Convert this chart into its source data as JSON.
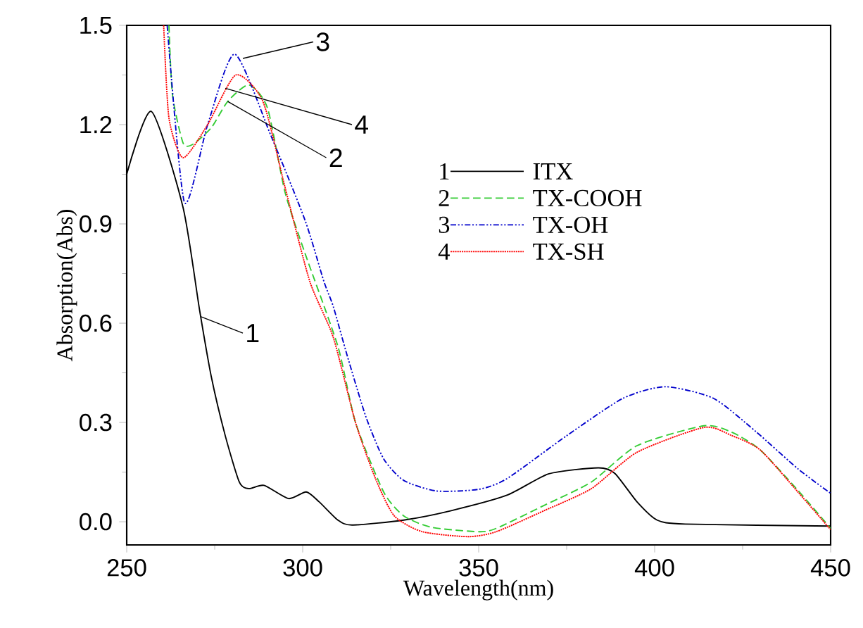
{
  "chart_data": {
    "type": "line",
    "xlabel": "Wavelength(nm)",
    "ylabel": "Absorption(Abs)",
    "xlim": [
      250,
      450
    ],
    "ylim": [
      -0.07,
      1.5
    ],
    "xticks": [
      250,
      300,
      350,
      400,
      450
    ],
    "yticks": [
      {
        "value": 0,
        "label": "0.0"
      },
      {
        "value": 0.3,
        "label": "0.3"
      },
      {
        "value": 0.6,
        "label": "0.6"
      },
      {
        "value": 0.9,
        "label": "0.9"
      },
      {
        "value": 1.2,
        "label": "1.2"
      },
      {
        "value": 1.5,
        "label": "1.5"
      }
    ],
    "grid": false,
    "legend": "right",
    "marker": "none",
    "series": [
      {
        "name": "ITX",
        "color": "#000000",
        "line_style": "solid",
        "x": [
          250,
          257,
          266,
          270.7,
          274,
          278,
          282,
          284.7,
          289,
          296,
          301,
          304.7,
          310,
          314,
          328.7,
          342,
          358,
          370,
          384,
          388.7,
          395,
          400.7,
          408.7,
          450
        ],
        "values": [
          1.05,
          1.24,
          0.95,
          0.64,
          0.44,
          0.26,
          0.12,
          0.1,
          0.11,
          0.07,
          0.09,
          0.06,
          0.005,
          -0.01,
          0.005,
          0.033,
          0.08,
          0.145,
          0.163,
          0.146,
          0.06,
          0.005,
          -0.007,
          -0.013
        ]
      },
      {
        "name": "TX-COOH",
        "color": "#33cc33",
        "line_style": "dashed",
        "x": [
          262,
          263,
          266,
          268.7,
          274,
          278.7,
          284.7,
          290,
          295,
          300.7,
          310,
          315,
          323,
          328.7,
          336.7,
          350,
          355,
          368.7,
          382,
          395,
          414,
          422,
          430,
          440.7,
          450
        ],
        "values": [
          1.5,
          1.29,
          1.145,
          1.14,
          1.19,
          1.27,
          1.32,
          1.25,
          0.995,
          0.81,
          0.53,
          0.3,
          0.09,
          0.018,
          -0.017,
          -0.03,
          -0.02,
          0.05,
          0.12,
          0.23,
          0.29,
          0.27,
          0.217,
          0.095,
          -0.02
        ]
      },
      {
        "name": "TX-OH",
        "color": "#0000cc",
        "line_style": "dashdotted",
        "x": [
          261.5,
          266.4,
          273,
          280.7,
          291,
          300.7,
          306,
          308.7,
          312.7,
          318,
          323,
          328.7,
          338,
          350,
          358,
          375,
          391,
          403,
          416.7,
          428.7,
          440.7,
          450
        ],
        "values": [
          1.5,
          0.965,
          1.2,
          1.413,
          1.166,
          0.91,
          0.727,
          0.65,
          0.5,
          0.316,
          0.19,
          0.125,
          0.093,
          0.098,
          0.13,
          0.26,
          0.373,
          0.408,
          0.373,
          0.273,
          0.16,
          0.086
        ]
      },
      {
        "name": "TX-SH",
        "color": "#ff0000",
        "line_style": "dotted",
        "x": [
          260.5,
          262,
          266,
          273,
          281,
          288.7,
          295,
          302,
          308.7,
          315,
          320.7,
          326,
          334,
          347,
          355,
          368.7,
          382,
          395,
          414,
          422,
          430,
          440.7,
          450
        ],
        "values": [
          1.5,
          1.22,
          1.1,
          1.2,
          1.35,
          1.27,
          1.01,
          0.727,
          0.557,
          0.3,
          0.13,
          0.018,
          -0.03,
          -0.045,
          -0.03,
          0.034,
          0.1,
          0.21,
          0.285,
          0.26,
          0.217,
          0.09,
          -0.024
        ]
      }
    ],
    "annotations": [
      {
        "text": "1",
        "x": 271,
        "y": 0.62
      },
      {
        "text": "2",
        "x": 278.7,
        "y": 1.27
      },
      {
        "text": "3",
        "x": 283,
        "y": 1.4
      },
      {
        "text": "4",
        "x": 278,
        "y": 1.31
      }
    ]
  }
}
